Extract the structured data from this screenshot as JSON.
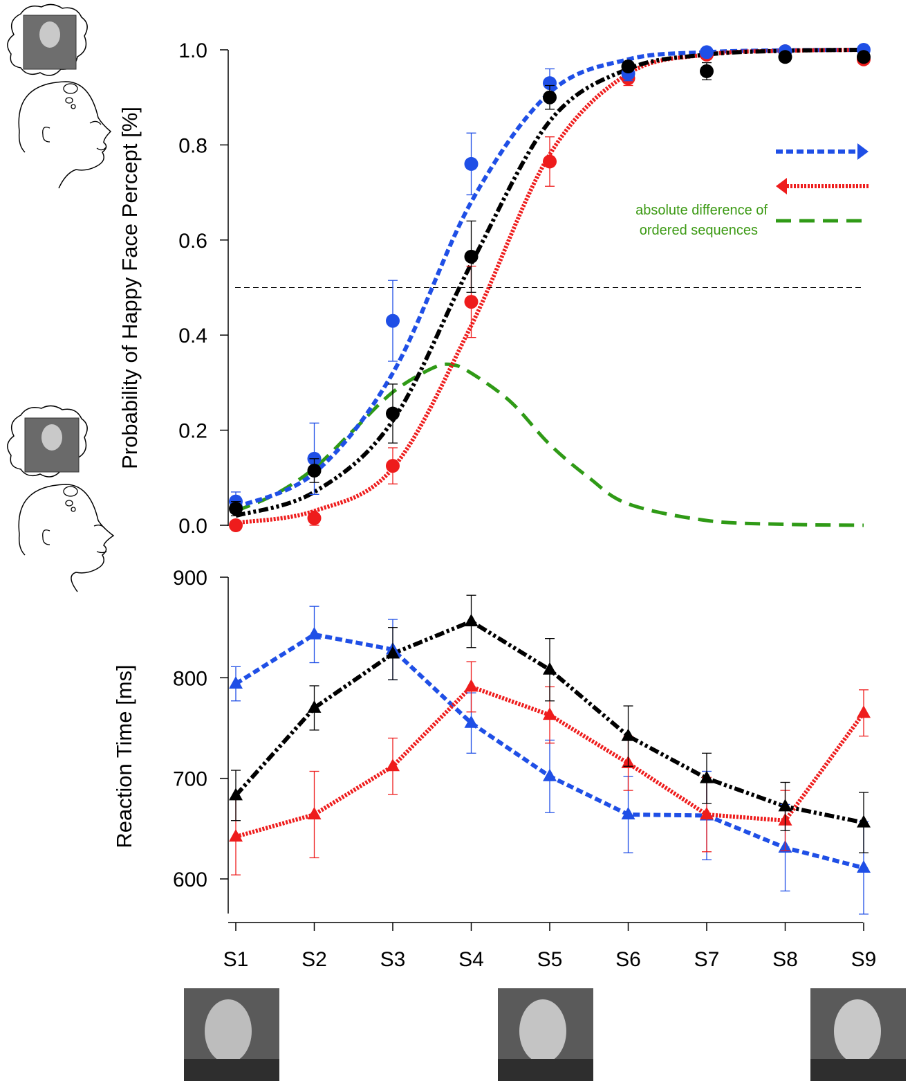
{
  "chart_data": [
    {
      "type": "line",
      "ylabel": "Probability of Happy Face Percept [%]",
      "ylim": [
        0.0,
        1.0
      ],
      "yticks": [
        "0.0",
        "0.2",
        "0.4",
        "0.6",
        "0.8",
        "1.0"
      ],
      "categories": [
        "S1",
        "S2",
        "S3",
        "S4",
        "S5",
        "S6",
        "S7",
        "S8",
        "S9"
      ],
      "reference_line": 0.5,
      "grid": false,
      "legend_placement": "right",
      "series": [
        {
          "color": "#1f4fe6",
          "style": "dotted-thick",
          "marker": "circle",
          "values": [
            0.05,
            0.14,
            0.43,
            0.76,
            0.93,
            0.95,
            0.995,
            0.997,
            1.0
          ],
          "errors": [
            0.02,
            0.075,
            0.085,
            0.065,
            0.03,
            0.015,
            0.005,
            0.003,
            0.002
          ],
          "fit": [
            0.038,
            0.11,
            0.32,
            0.68,
            0.91,
            0.98,
            0.995,
            0.999,
            1.0
          ]
        },
        {
          "color": "#ee1c1c",
          "style": "dotted-thin",
          "marker": "circle",
          "values": [
            0.0,
            0.015,
            0.125,
            0.47,
            0.765,
            0.94,
            0.99,
            0.997,
            0.98
          ],
          "errors": [
            0.005,
            0.015,
            0.038,
            0.075,
            0.052,
            0.015,
            0.01,
            0.005,
            0.01
          ],
          "fit": [
            0.005,
            0.03,
            0.12,
            0.42,
            0.78,
            0.95,
            0.99,
            0.998,
            1.0
          ]
        },
        {
          "color": "#000000",
          "style": "dash-dot-dot",
          "marker": "circle",
          "values": [
            0.035,
            0.115,
            0.235,
            0.565,
            0.9,
            0.965,
            0.955,
            0.985,
            0.985
          ],
          "errors": [
            0.015,
            0.025,
            0.062,
            0.075,
            0.025,
            0.01,
            0.018,
            0.01,
            0.01
          ],
          "fit": [
            0.02,
            0.07,
            0.22,
            0.55,
            0.85,
            0.96,
            0.99,
            0.998,
            1.0
          ]
        },
        {
          "name": "absolute difference of ordered sequences",
          "color": "#2f9a16",
          "style": "dashed",
          "marker": "none",
          "fit_x": [
            0.0,
            0.5,
            1.0,
            1.5,
            2.0,
            2.5,
            2.75,
            3.0,
            3.5,
            4.0,
            4.5,
            5.0,
            6.0,
            7.0,
            8.0
          ],
          "fit": [
            0.03,
            0.065,
            0.12,
            0.2,
            0.28,
            0.33,
            0.338,
            0.32,
            0.26,
            0.17,
            0.1,
            0.045,
            0.01,
            0.002,
            0.0
          ]
        }
      ]
    },
    {
      "type": "line",
      "ylabel": "Reaction Time [ms]",
      "ylim": [
        600,
        900
      ],
      "yticks": [
        "600",
        "700",
        "800",
        "900"
      ],
      "categories": [
        "S1",
        "S2",
        "S3",
        "S4",
        "S5",
        "S6",
        "S7",
        "S8",
        "S9"
      ],
      "grid": false,
      "series": [
        {
          "color": "#1f4fe6",
          "style": "dotted-thick",
          "marker": "triangle",
          "values": [
            794,
            843,
            828,
            755,
            702,
            664,
            663,
            631,
            611
          ],
          "errors": [
            17,
            28,
            30,
            30,
            36,
            38,
            44,
            43,
            46
          ]
        },
        {
          "color": "#ee1c1c",
          "style": "dotted-thin",
          "marker": "triangle",
          "values": [
            642,
            664,
            712,
            791,
            763,
            715,
            664,
            658,
            765
          ],
          "errors": [
            38,
            43,
            28,
            25,
            28,
            27,
            37,
            30,
            23
          ]
        },
        {
          "color": "#000000",
          "style": "dash-dot-dot",
          "marker": "triangle",
          "values": [
            683,
            770,
            824,
            856,
            808,
            742,
            700,
            672,
            656
          ],
          "errors": [
            25,
            22,
            26,
            26,
            31,
            30,
            25,
            24,
            30
          ]
        }
      ]
    }
  ]
}
